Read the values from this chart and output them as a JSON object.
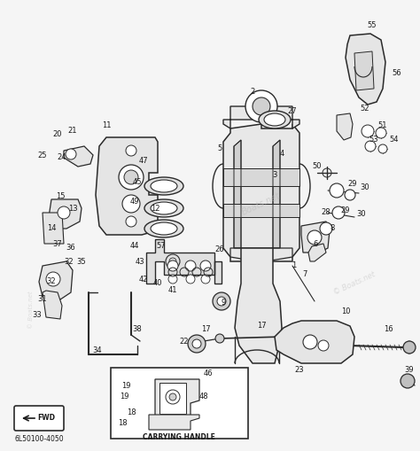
{
  "background_color": "#f5f5f5",
  "line_color": "#2a2a2a",
  "text_color": "#1a1a1a",
  "fig_width": 4.74,
  "fig_height": 5.09,
  "dpi": 100,
  "label_fontsize": 6.0,
  "part_code": "6L50100-4050",
  "inset_label": "CARRYING HANDLE",
  "watermark": "Boats.net"
}
